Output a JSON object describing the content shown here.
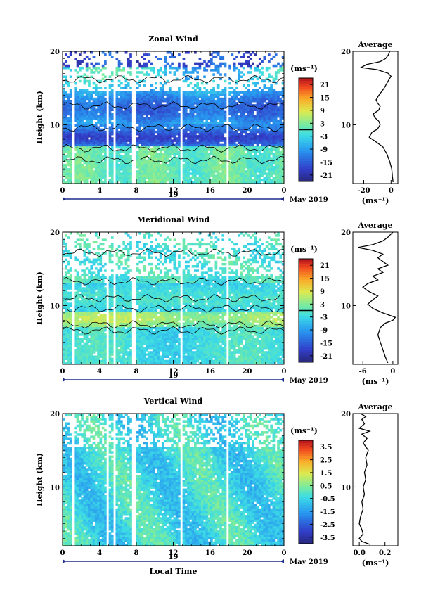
{
  "chart_data": [
    {
      "type": "heatmap",
      "title": "Zonal Wind",
      "ylabel": "Height (km)",
      "ylim": [
        2,
        20
      ],
      "xlim": [
        0,
        24
      ],
      "x_ticks": [
        "0",
        "4",
        "8",
        "12",
        "16",
        "20",
        "0"
      ],
      "y_ticks": [
        "20",
        "10"
      ],
      "date_label": "19",
      "date_suffix": "May 2019",
      "colorbar": {
        "unit": "(ms⁻¹)",
        "range": [
          -24,
          24
        ],
        "ticks": [
          "21",
          "15",
          "9",
          "3",
          "-3",
          "-9",
          "-15",
          "-21"
        ],
        "contour_at": 0
      },
      "profile": {
        "title": "Average",
        "xlabel": "(ms⁻¹)",
        "x_ticks": [
          "-20",
          "0"
        ],
        "x_tick_values": [
          -20,
          0
        ],
        "xlim": [
          -28,
          5
        ],
        "y_ticks": [
          "20",
          "10"
        ],
        "points": [
          [
            1.5,
            2.2
          ],
          [
            1,
            3
          ],
          [
            0.5,
            4
          ],
          [
            -1,
            5
          ],
          [
            -3,
            6
          ],
          [
            -6,
            7
          ],
          [
            -12,
            7.8
          ],
          [
            -16,
            8.3
          ],
          [
            -14,
            9
          ],
          [
            -10,
            9.4
          ],
          [
            -8,
            10
          ],
          [
            -9,
            10.5
          ],
          [
            -12,
            11
          ],
          [
            -13,
            11.5
          ],
          [
            -9,
            12
          ],
          [
            -8,
            12.5
          ],
          [
            -10,
            13
          ],
          [
            -11,
            13.4
          ],
          [
            -9,
            14
          ],
          [
            -5,
            15
          ],
          [
            -2,
            16
          ],
          [
            0,
            16.6
          ],
          [
            -2,
            17
          ],
          [
            -10,
            17.5
          ],
          [
            -22,
            17.8
          ],
          [
            -18,
            18.2
          ],
          [
            -8,
            18.6
          ],
          [
            -4,
            19
          ],
          [
            -2,
            19.5
          ],
          [
            -1,
            20
          ]
        ]
      },
      "series": [
        {
          "name": "wind",
          "unit": "ms⁻¹"
        }
      ]
    },
    {
      "type": "heatmap",
      "title": "Meridional Wind",
      "ylabel": "Height (km)",
      "ylim": [
        2,
        20
      ],
      "xlim": [
        0,
        24
      ],
      "x_ticks": [
        "0",
        "4",
        "8",
        "12",
        "16",
        "20",
        "0"
      ],
      "y_ticks": [
        "20",
        "10"
      ],
      "date_label": "19",
      "date_suffix": "May 2019",
      "colorbar": {
        "unit": "(ms⁻¹)",
        "range": [
          -24,
          24
        ],
        "ticks": [
          "21",
          "15",
          "9",
          "3",
          "-3",
          "-9",
          "-15",
          "-21"
        ],
        "contour_at": 0
      },
      "profile": {
        "title": "Average",
        "xlabel": "(ms⁻¹)",
        "x_ticks": [
          "-6",
          "0"
        ],
        "x_tick_values": [
          -6,
          0
        ],
        "xlim": [
          -8,
          1
        ],
        "y_ticks": [
          "20",
          "10"
        ],
        "points": [
          [
            -1,
            2.2
          ],
          [
            -1.5,
            3
          ],
          [
            -2,
            4
          ],
          [
            -2.5,
            5
          ],
          [
            -3,
            6
          ],
          [
            -2.5,
            7
          ],
          [
            -1.5,
            7.6
          ],
          [
            0,
            8
          ],
          [
            0.5,
            8.4
          ],
          [
            -2,
            9
          ],
          [
            -4,
            9.6
          ],
          [
            -5,
            10.2
          ],
          [
            -4,
            10.8
          ],
          [
            -3,
            11.3
          ],
          [
            -5,
            12
          ],
          [
            -6,
            12.5
          ],
          [
            -5,
            13
          ],
          [
            -3,
            13.5
          ],
          [
            -4,
            14
          ],
          [
            -2,
            14.5
          ],
          [
            -3,
            15
          ],
          [
            -1,
            15.5
          ],
          [
            -2,
            16
          ],
          [
            -3,
            16.5
          ],
          [
            -2,
            17
          ],
          [
            -4,
            17.5
          ],
          [
            -7,
            17.9
          ],
          [
            -4,
            18.3
          ],
          [
            -2,
            18.8
          ],
          [
            -1,
            19.3
          ],
          [
            0,
            20
          ]
        ]
      },
      "series": [
        {
          "name": "wind",
          "unit": "ms⁻¹"
        }
      ]
    },
    {
      "type": "heatmap",
      "title": "Vertical Wind",
      "ylabel": "Height (km)",
      "xlabel": "Local Time",
      "ylim": [
        2,
        20
      ],
      "xlim": [
        0,
        24
      ],
      "x_ticks": [
        "0",
        "4",
        "8",
        "12",
        "16",
        "20",
        "0"
      ],
      "y_ticks": [
        "20",
        "10"
      ],
      "date_label": "19",
      "date_suffix": "May 2019",
      "colorbar": {
        "unit": "(ms⁻¹)",
        "range": [
          -4,
          4
        ],
        "ticks": [
          "3.5",
          "2.5",
          "1.5",
          "0.5",
          "-0.5",
          "-1.5",
          "-2.5",
          "-3.5"
        ]
      },
      "profile": {
        "title": "Average",
        "xlabel": "(ms⁻¹)",
        "x_ticks": [
          "0.0",
          "0.2"
        ],
        "x_tick_values": [
          0.0,
          0.2
        ],
        "xlim": [
          -0.05,
          0.3
        ],
        "y_ticks": [
          "20",
          "10"
        ],
        "points": [
          [
            0.08,
            2.2
          ],
          [
            0.02,
            2.6
          ],
          [
            0.0,
            3
          ],
          [
            0.03,
            3.6
          ],
          [
            0.02,
            4.2
          ],
          [
            0.0,
            5
          ],
          [
            0.01,
            6
          ],
          [
            0.03,
            7
          ],
          [
            0.02,
            8
          ],
          [
            0.04,
            9
          ],
          [
            0.03,
            10
          ],
          [
            0.05,
            11
          ],
          [
            0.04,
            12
          ],
          [
            0.06,
            13
          ],
          [
            0.05,
            14
          ],
          [
            0.07,
            15
          ],
          [
            0.03,
            16
          ],
          [
            0.06,
            16.6
          ],
          [
            0.02,
            17.2
          ],
          [
            0.08,
            17.6
          ],
          [
            0.0,
            18
          ],
          [
            0.04,
            18.6
          ],
          [
            0.02,
            19.2
          ],
          [
            0.05,
            19.6
          ],
          [
            0.01,
            20
          ]
        ]
      },
      "series": [
        {
          "name": "wind",
          "unit": "ms⁻¹"
        }
      ]
    }
  ]
}
